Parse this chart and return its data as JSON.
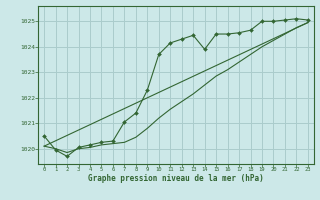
{
  "title": "Graphe pression niveau de la mer (hPa)",
  "background_color": "#cce8e8",
  "grid_color": "#aacccc",
  "line_color": "#336633",
  "xlim": [
    -0.5,
    23.5
  ],
  "ylim": [
    1019.4,
    1025.6
  ],
  "yticks": [
    1020,
    1021,
    1022,
    1023,
    1024,
    1025
  ],
  "xticks": [
    0,
    1,
    2,
    3,
    4,
    5,
    6,
    7,
    8,
    9,
    10,
    11,
    12,
    13,
    14,
    15,
    16,
    17,
    18,
    19,
    20,
    21,
    22,
    23
  ],
  "series_main": {
    "x": [
      0,
      1,
      2,
      3,
      4,
      5,
      6,
      7,
      8,
      9,
      10,
      11,
      12,
      13,
      14,
      15,
      16,
      17,
      18,
      19,
      20,
      21,
      22,
      23
    ],
    "y": [
      1020.5,
      1019.95,
      1019.7,
      1020.05,
      1020.15,
      1020.25,
      1020.3,
      1021.05,
      1021.4,
      1022.3,
      1023.7,
      1024.15,
      1024.3,
      1024.45,
      1023.9,
      1024.5,
      1024.5,
      1024.55,
      1024.65,
      1025.0,
      1025.0,
      1025.05,
      1025.1,
      1025.05
    ]
  },
  "series_smooth": {
    "x": [
      0,
      1,
      2,
      3,
      4,
      5,
      6,
      7,
      8,
      9,
      10,
      11,
      12,
      13,
      14,
      15,
      16,
      17,
      18,
      19,
      20,
      21,
      22,
      23
    ],
    "y": [
      1020.1,
      1020.0,
      1019.85,
      1020.0,
      1020.05,
      1020.15,
      1020.2,
      1020.25,
      1020.45,
      1020.8,
      1021.2,
      1021.55,
      1021.85,
      1022.15,
      1022.5,
      1022.85,
      1023.1,
      1023.4,
      1023.7,
      1024.0,
      1024.25,
      1024.5,
      1024.75,
      1024.95
    ]
  },
  "series_trend": {
    "x": [
      0,
      23
    ],
    "y": [
      1020.1,
      1024.95
    ]
  }
}
